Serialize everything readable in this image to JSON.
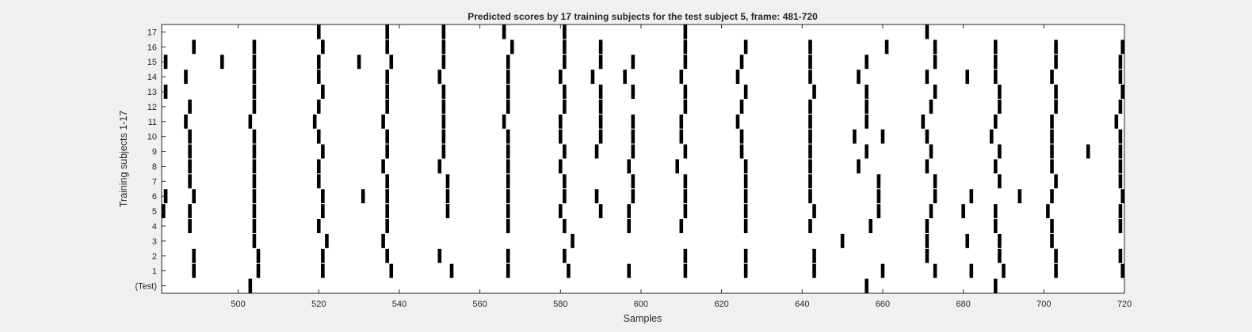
{
  "chart_data": {
    "type": "event_raster",
    "title": "Predicted scores by 17 training subjects for the test subject 5, frame: 481-720",
    "xlabel": "Samples",
    "ylabel": "Training subjects 1-17",
    "xlim": [
      481,
      720
    ],
    "x_ticks": [
      500,
      520,
      540,
      560,
      580,
      600,
      620,
      640,
      660,
      680,
      700,
      720
    ],
    "y_tick_labels": [
      "(Test)",
      "1",
      "2",
      "3",
      "4",
      "5",
      "6",
      "7",
      "8",
      "9",
      "10",
      "11",
      "12",
      "13",
      "14",
      "15",
      "16",
      "17"
    ],
    "rows": [
      {
        "label": "(Test)",
        "x": [
          503,
          656,
          688
        ]
      },
      {
        "label": "1",
        "x": [
          489,
          505,
          521,
          538,
          553,
          567,
          582,
          597,
          611,
          626,
          643,
          660,
          673,
          682,
          690,
          703,
          720
        ]
      },
      {
        "label": "2",
        "x": [
          489,
          505,
          521,
          537,
          550,
          567,
          581,
          611,
          626,
          643,
          671,
          689,
          703,
          719
        ]
      },
      {
        "label": "3",
        "x": [
          504,
          522,
          536,
          583,
          650,
          671,
          681,
          689,
          702
        ]
      },
      {
        "label": "4",
        "x": [
          488,
          504,
          520,
          537,
          567,
          581,
          597,
          610,
          626,
          642,
          657,
          671,
          688,
          702,
          719
        ]
      },
      {
        "label": "5",
        "x": [
          481,
          488,
          504,
          521,
          537,
          552,
          567,
          580,
          590,
          597,
          611,
          626,
          643,
          659,
          672,
          680,
          688,
          701,
          719
        ]
      },
      {
        "label": "6",
        "x": [
          482,
          489,
          504,
          521,
          531,
          537,
          552,
          567,
          581,
          589,
          598,
          611,
          626,
          642,
          659,
          673,
          682,
          694,
          702,
          720
        ]
      },
      {
        "label": "7",
        "x": [
          488,
          504,
          520,
          537,
          552,
          567,
          581,
          598,
          611,
          626,
          642,
          659,
          673,
          689,
          703,
          719
        ]
      },
      {
        "label": "8",
        "x": [
          488,
          504,
          520,
          536,
          550,
          567,
          580,
          597,
          609,
          626,
          642,
          654,
          671,
          688,
          702,
          719
        ]
      },
      {
        "label": "9",
        "x": [
          488,
          504,
          521,
          537,
          551,
          567,
          581,
          589,
          598,
          611,
          625,
          642,
          656,
          672,
          689,
          702,
          711,
          719
        ]
      },
      {
        "label": "10",
        "x": [
          488,
          504,
          520,
          537,
          551,
          567,
          580,
          590,
          598,
          610,
          625,
          642,
          653,
          660,
          671,
          687,
          702,
          719
        ]
      },
      {
        "label": "11",
        "x": [
          487,
          503,
          519,
          536,
          551,
          566,
          580,
          590,
          598,
          610,
          624,
          642,
          656,
          670,
          688,
          702,
          718
        ]
      },
      {
        "label": "12",
        "x": [
          488,
          504,
          520,
          537,
          551,
          567,
          581,
          590,
          611,
          625,
          642,
          656,
          672,
          689,
          703,
          719
        ]
      },
      {
        "label": "13",
        "x": [
          482,
          504,
          521,
          537,
          551,
          567,
          581,
          590,
          598,
          611,
          626,
          643,
          656,
          673,
          689,
          703,
          720
        ]
      },
      {
        "label": "14",
        "x": [
          487,
          504,
          520,
          537,
          550,
          567,
          580,
          588,
          596,
          610,
          624,
          642,
          654,
          671,
          681,
          688,
          702,
          719
        ]
      },
      {
        "label": "15",
        "x": [
          482,
          496,
          504,
          520,
          530,
          538,
          551,
          567,
          581,
          590,
          598,
          611,
          625,
          642,
          656,
          673,
          688,
          703,
          719
        ]
      },
      {
        "label": "16",
        "x": [
          489,
          504,
          521,
          537,
          551,
          568,
          581,
          590,
          611,
          626,
          642,
          661,
          673,
          688,
          703,
          720
        ]
      },
      {
        "label": "17",
        "x": [
          520,
          537,
          551,
          566,
          581,
          611,
          671
        ]
      }
    ]
  }
}
